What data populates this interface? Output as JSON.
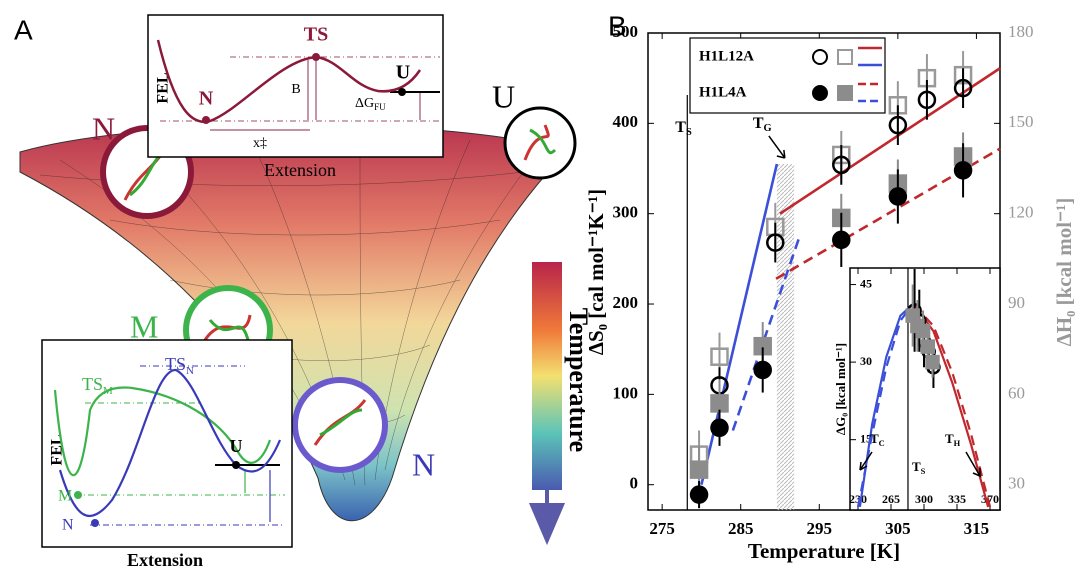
{
  "panel_a": {
    "label": "A",
    "inset_top": {
      "ylabel": "FEL",
      "ts": "TS",
      "n": "N",
      "u": "U",
      "barrier": "B",
      "dg": {
        "text": "ΔG",
        "sub": "FU"
      },
      "x": "x‡",
      "xlabel": "Extension"
    },
    "states": {
      "n_red": "N",
      "u": "U",
      "m": "M",
      "n_blue": "N"
    },
    "colorbar": "Temperature",
    "inset_bottom": {
      "ylabel": "FEL",
      "ts_m": {
        "text": "TS",
        "sub": "M"
      },
      "ts_n": {
        "text": "TS",
        "sub": "N"
      },
      "u": "U",
      "m": "M",
      "n": "N",
      "xlabel": "Extension"
    }
  },
  "panel_b_label": "B",
  "chart_data": [
    {
      "type": "scatter",
      "xlabel": "Temperature [K]",
      "ylabel": "ΔS₀ [cal mol⁻¹K⁻¹]",
      "y2label": "ΔH₀ [kcal mol⁻¹]",
      "xlim": [
        273.2,
        318
      ],
      "xticks": [
        275,
        285,
        295,
        305,
        315
      ],
      "ylim": [
        -28,
        500
      ],
      "yticks": [
        0,
        100,
        200,
        300,
        400,
        500
      ],
      "y2lim": [
        21.6,
        180
      ],
      "y2ticks": [
        30,
        60,
        90,
        120,
        150,
        180
      ],
      "y2color": "#999999",
      "series": [
        {
          "name": "H1L12A",
          "marker": "open",
          "color": "#000000",
          "h_color": "#999999",
          "x": [
            279.7,
            282.3,
            289.4,
            297.8,
            305,
            308.7,
            313.3
          ],
          "values": [
            null,
            110,
            268,
            354,
            398,
            426,
            439
          ],
          "errors": [
            null,
            20,
            22,
            22,
            22,
            22,
            22
          ],
          "h_values": [
            40,
            72.5,
            115.6,
            139.5,
            156,
            165,
            166
          ],
          "h_errors": [
            8,
            8,
            8,
            8,
            8,
            8,
            8
          ]
        },
        {
          "name": "H1L4A",
          "marker": "filled",
          "color": "#000000",
          "h_color": "#8c8c8c",
          "x": [
            279.7,
            282.3,
            287.8,
            297.8,
            305,
            313.3
          ],
          "values": [
            -11,
            63,
            127,
            271,
            319,
            348
          ],
          "errors": [
            15,
            20,
            25,
            30,
            30,
            30
          ],
          "h_values": [
            35,
            57,
            76,
            118.6,
            130,
            139
          ],
          "h_errors": [
            8,
            8,
            8,
            8,
            8,
            8
          ]
        }
      ],
      "fits": [
        {
          "color": "#c0282d",
          "dash": false,
          "x": [
            290,
            318
          ],
          "values": [
            300,
            461
          ]
        },
        {
          "color": "#3b4fd8",
          "dash": false,
          "x": [
            280,
            289.6
          ],
          "values": [
            0,
            355
          ]
        },
        {
          "color": "#c0282d",
          "dash": true,
          "x": [
            289.5,
            318
          ],
          "values": [
            228,
            372
          ]
        },
        {
          "color": "#3b4fd8",
          "dash": true,
          "x": [
            284,
            292.5
          ],
          "values": [
            60,
            275
          ]
        }
      ],
      "ts": {
        "x": 278.2,
        "text": "T",
        "sub": "S"
      },
      "tg": {
        "x": [
          289.6,
          291.8
        ],
        "text": "T",
        "sub": "G"
      }
    },
    {
      "type": "scatter",
      "ylabel": "ΔG₀ [kcal mol⁻¹]",
      "xlim": [
        221.5,
        380.6
      ],
      "xticks": [
        230,
        265,
        300,
        335,
        370
      ],
      "ylim": [
        1.4,
        48.2
      ],
      "yticks": [
        15,
        30,
        45
      ],
      "series": [
        {
          "marker": "open",
          "color": "#000000",
          "x": [
            290,
            295,
            300,
            305,
            310
          ],
          "values": [
            40,
            38,
            34,
            32,
            29
          ],
          "errors": [
            8,
            6,
            5,
            4,
            4
          ]
        },
        {
          "marker": "filled-square",
          "color": "#8c8c8c",
          "x": [
            288,
            293,
            299,
            304,
            309
          ],
          "values": [
            39,
            37,
            36,
            33,
            30
          ],
          "errors": [
            6,
            5,
            4,
            4,
            3
          ]
        }
      ],
      "fits": [
        {
          "color": "#3b4fd8",
          "dash": false,
          "x": [
            232,
            245,
            260,
            275,
            287
          ],
          "values": [
            2,
            18,
            31,
            39,
            41
          ]
        },
        {
          "color": "#3b4fd8",
          "dash": true,
          "x": [
            230,
            245,
            260,
            275,
            287
          ],
          "values": [
            2,
            16,
            29,
            38,
            41
          ]
        },
        {
          "color": "#c0282d",
          "dash": false,
          "x": [
            290,
            310,
            330,
            350,
            368
          ],
          "values": [
            41,
            36,
            26,
            14,
            2
          ]
        },
        {
          "color": "#c0282d",
          "dash": true,
          "x": [
            290,
            310,
            330,
            350,
            370
          ],
          "values": [
            41,
            37,
            28,
            16,
            2
          ]
        }
      ],
      "ts": {
        "x": 283,
        "text": "T",
        "sub": "S"
      },
      "tc": {
        "text": "T",
        "sub": "C"
      },
      "th": {
        "text": "T",
        "sub": "H"
      }
    }
  ]
}
